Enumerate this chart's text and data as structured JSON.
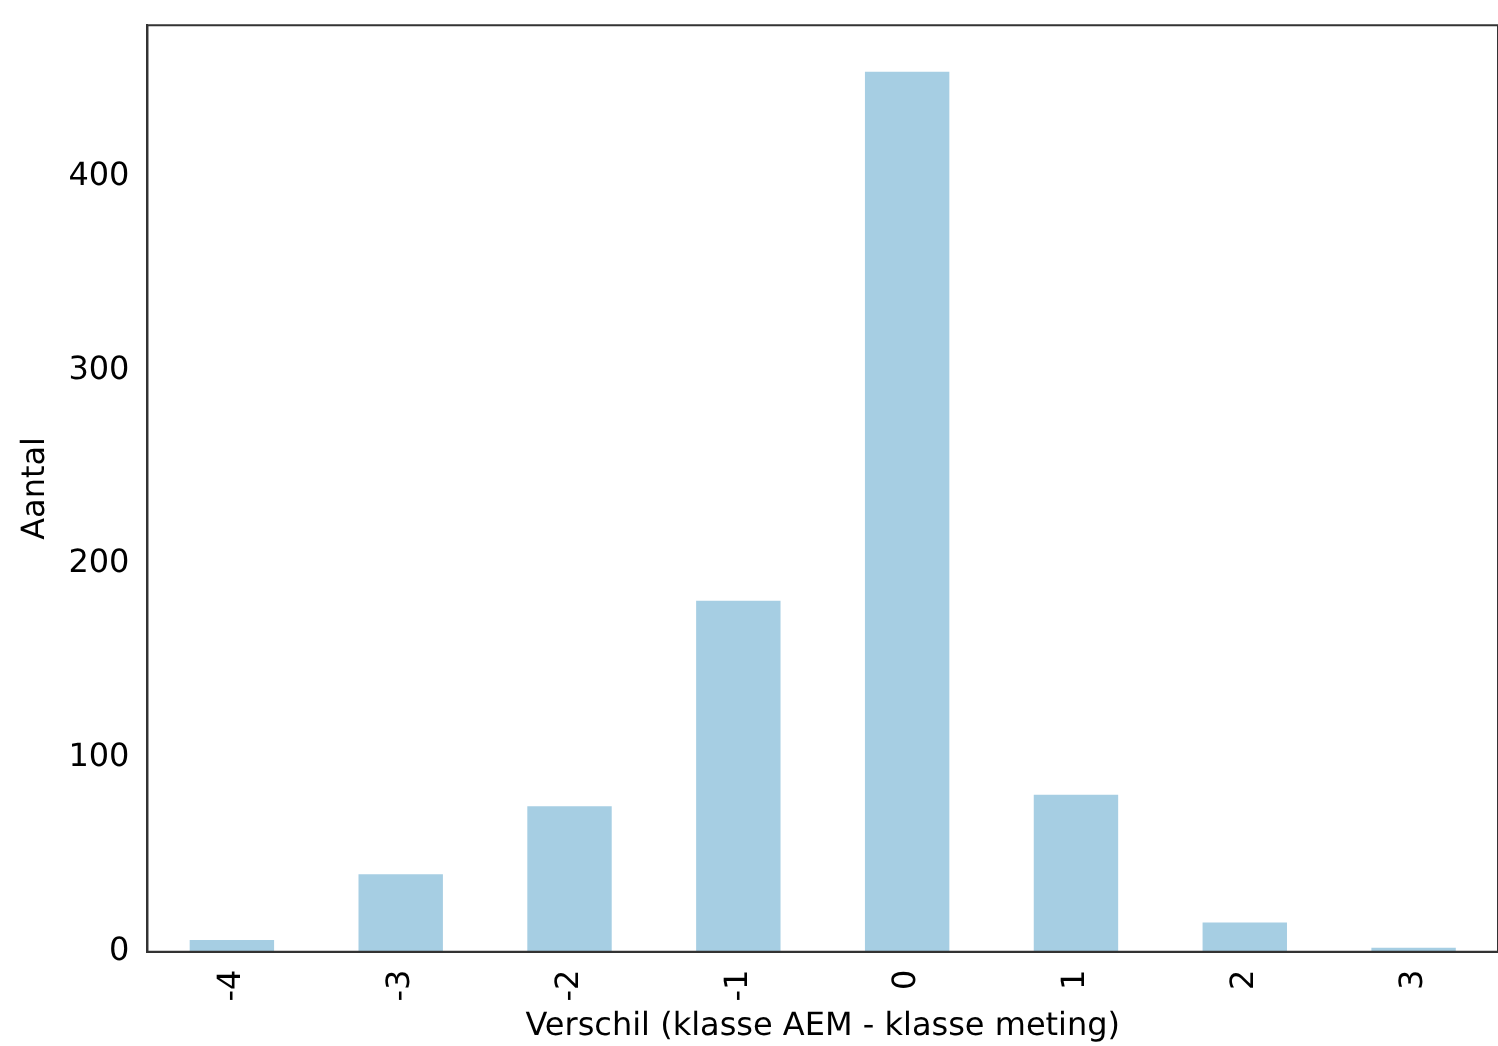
{
  "chart_data": {
    "type": "bar",
    "xlabel": "Verschil (klasse AEM - klasse meting)",
    "ylabel": "Aantal",
    "categories": [
      "-4",
      "-3",
      "-2",
      "-1",
      "0",
      "1",
      "2",
      "3"
    ],
    "values": [
      6,
      40,
      75,
      181,
      454,
      81,
      15,
      2
    ],
    "color": "#a6cee3",
    "ylim": [
      0,
      478
    ],
    "yticks": [
      0,
      100,
      200,
      300,
      400
    ],
    "grid": false,
    "legend": false
  }
}
